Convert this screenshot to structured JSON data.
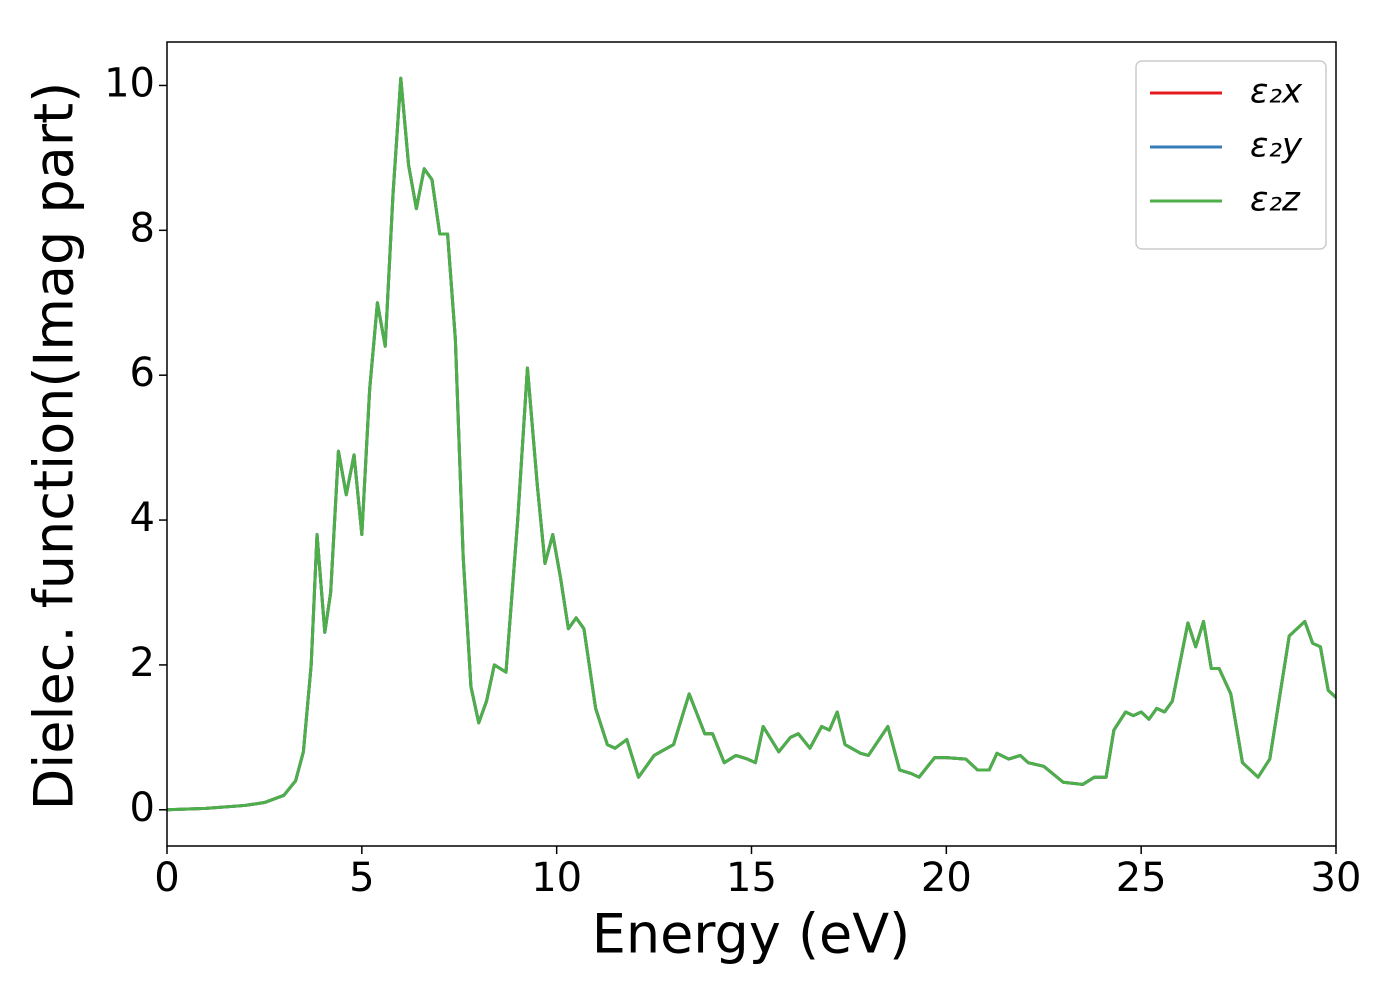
{
  "chart_data": {
    "type": "line",
    "x_label": "Energy (eV)",
    "y_label": "Dielec. function(Imag part)",
    "xlim": [
      0,
      30
    ],
    "ylim": [
      -0.5,
      10.6
    ],
    "xticks": [
      0,
      5,
      10,
      15,
      20,
      25,
      30
    ],
    "yticks": [
      0,
      2,
      4,
      6,
      8,
      10
    ],
    "legend": "upper right",
    "grid": false,
    "x": [
      0,
      1,
      2,
      2.5,
      3,
      3.3,
      3.5,
      3.7,
      3.85,
      4.05,
      4.2,
      4.4,
      4.6,
      4.8,
      5.0,
      5.2,
      5.4,
      5.6,
      5.8,
      6.0,
      6.2,
      6.4,
      6.6,
      6.8,
      7.0,
      7.2,
      7.4,
      7.6,
      7.8,
      8.0,
      8.2,
      8.4,
      8.7,
      9.0,
      9.25,
      9.5,
      9.7,
      9.9,
      10.1,
      10.3,
      10.5,
      10.7,
      11.0,
      11.3,
      11.5,
      11.8,
      12.1,
      12.5,
      13.0,
      13.4,
      13.8,
      14.0,
      14.3,
      14.6,
      14.9,
      15.1,
      15.3,
      15.7,
      16.0,
      16.2,
      16.5,
      16.8,
      17.0,
      17.2,
      17.4,
      17.8,
      18.0,
      18.5,
      18.8,
      19.1,
      19.3,
      19.7,
      20.0,
      20.5,
      20.8,
      21.1,
      21.3,
      21.6,
      21.9,
      22.1,
      22.5,
      23.0,
      23.5,
      23.8,
      24.1,
      24.3,
      24.6,
      24.8,
      25.0,
      25.2,
      25.4,
      25.6,
      25.8,
      26.2,
      26.4,
      26.6,
      26.8,
      27.0,
      27.3,
      27.6,
      28.0,
      28.3,
      28.8,
      29.0,
      29.2,
      29.4,
      29.6,
      29.8,
      30
    ],
    "series": [
      {
        "name": "ε₂x",
        "color": "#e41a1c",
        "values": [
          0,
          0.02,
          0.06,
          0.1,
          0.2,
          0.4,
          0.8,
          2.0,
          3.8,
          2.45,
          3.0,
          4.95,
          4.35,
          4.9,
          3.8,
          5.8,
          7.0,
          6.4,
          8.5,
          10.1,
          8.9,
          8.3,
          8.85,
          8.7,
          7.95,
          7.95,
          6.5,
          3.5,
          1.7,
          1.2,
          1.5,
          2.0,
          1.9,
          4.0,
          6.1,
          4.5,
          3.4,
          3.8,
          3.2,
          2.5,
          2.65,
          2.5,
          1.4,
          0.9,
          0.85,
          0.97,
          0.45,
          0.75,
          0.9,
          1.6,
          1.05,
          1.05,
          0.65,
          0.75,
          0.7,
          0.65,
          1.15,
          0.8,
          1.0,
          1.05,
          0.85,
          1.15,
          1.1,
          1.35,
          0.9,
          0.78,
          0.75,
          1.15,
          0.55,
          0.5,
          0.45,
          0.72,
          0.72,
          0.7,
          0.55,
          0.55,
          0.78,
          0.7,
          0.75,
          0.65,
          0.6,
          0.38,
          0.35,
          0.45,
          0.45,
          1.1,
          1.35,
          1.3,
          1.35,
          1.25,
          1.4,
          1.35,
          1.5,
          2.58,
          2.25,
          2.6,
          1.95,
          1.95,
          1.6,
          0.65,
          0.45,
          0.7,
          2.4,
          2.5,
          2.6,
          2.3,
          2.25,
          1.65,
          1.55
        ]
      },
      {
        "name": "ε₂y",
        "color": "#377eb8",
        "values": [
          0,
          0.02,
          0.06,
          0.1,
          0.2,
          0.4,
          0.8,
          2.0,
          3.8,
          2.45,
          3.0,
          4.95,
          4.35,
          4.9,
          3.8,
          5.8,
          7.0,
          6.4,
          8.5,
          10.1,
          8.9,
          8.3,
          8.85,
          8.7,
          7.95,
          7.95,
          6.5,
          3.5,
          1.7,
          1.2,
          1.5,
          2.0,
          1.9,
          4.0,
          6.1,
          4.5,
          3.4,
          3.8,
          3.2,
          2.5,
          2.65,
          2.5,
          1.4,
          0.9,
          0.85,
          0.97,
          0.45,
          0.75,
          0.9,
          1.6,
          1.05,
          1.05,
          0.65,
          0.75,
          0.7,
          0.65,
          1.15,
          0.8,
          1.0,
          1.05,
          0.85,
          1.15,
          1.1,
          1.35,
          0.9,
          0.78,
          0.75,
          1.15,
          0.55,
          0.5,
          0.45,
          0.72,
          0.72,
          0.7,
          0.55,
          0.55,
          0.78,
          0.7,
          0.75,
          0.65,
          0.6,
          0.38,
          0.35,
          0.45,
          0.45,
          1.1,
          1.35,
          1.3,
          1.35,
          1.25,
          1.4,
          1.35,
          1.5,
          2.58,
          2.25,
          2.6,
          1.95,
          1.95,
          1.6,
          0.65,
          0.45,
          0.7,
          2.4,
          2.5,
          2.6,
          2.3,
          2.25,
          1.65,
          1.55
        ]
      },
      {
        "name": "ε₂z",
        "color": "#4daf4a",
        "values": [
          0,
          0.02,
          0.06,
          0.1,
          0.2,
          0.4,
          0.8,
          2.0,
          3.8,
          2.45,
          3.0,
          4.95,
          4.35,
          4.9,
          3.8,
          5.8,
          7.0,
          6.4,
          8.5,
          10.1,
          8.9,
          8.3,
          8.85,
          8.7,
          7.95,
          7.95,
          6.5,
          3.5,
          1.7,
          1.2,
          1.5,
          2.0,
          1.9,
          4.0,
          6.1,
          4.5,
          3.4,
          3.8,
          3.2,
          2.5,
          2.65,
          2.5,
          1.4,
          0.9,
          0.85,
          0.97,
          0.45,
          0.75,
          0.9,
          1.6,
          1.05,
          1.05,
          0.65,
          0.75,
          0.7,
          0.65,
          1.15,
          0.8,
          1.0,
          1.05,
          0.85,
          1.15,
          1.1,
          1.35,
          0.9,
          0.78,
          0.75,
          1.15,
          0.55,
          0.5,
          0.45,
          0.72,
          0.72,
          0.7,
          0.55,
          0.55,
          0.78,
          0.7,
          0.75,
          0.65,
          0.6,
          0.38,
          0.35,
          0.45,
          0.45,
          1.1,
          1.35,
          1.3,
          1.35,
          1.25,
          1.4,
          1.35,
          1.5,
          2.58,
          2.25,
          2.6,
          1.95,
          1.95,
          1.6,
          0.65,
          0.45,
          0.7,
          2.4,
          2.5,
          2.6,
          2.3,
          2.25,
          1.65,
          1.55
        ]
      }
    ]
  }
}
